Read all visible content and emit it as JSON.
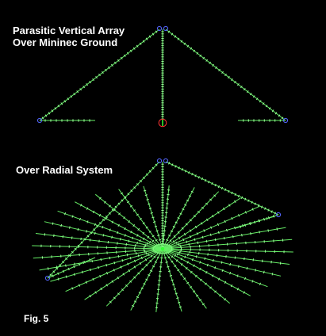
{
  "figure": {
    "title_line_1": "Parasitic Vertical Array",
    "title_line_2": "Over Mininec Ground",
    "radial_heading": "Over Radial System",
    "fig_label": "Fig. 5"
  },
  "colors": {
    "background": "#000000",
    "text": "#ffffff",
    "wire": "#66ee66",
    "segment_tick": "#99ff99",
    "wire_end": "#5566ff",
    "source_marker": "#ff3333",
    "feed_point": "#33ff33"
  },
  "icons": {
    "wire_end": "small-blue-circle",
    "source": "red-circle",
    "feed": "green-dot"
  }
}
